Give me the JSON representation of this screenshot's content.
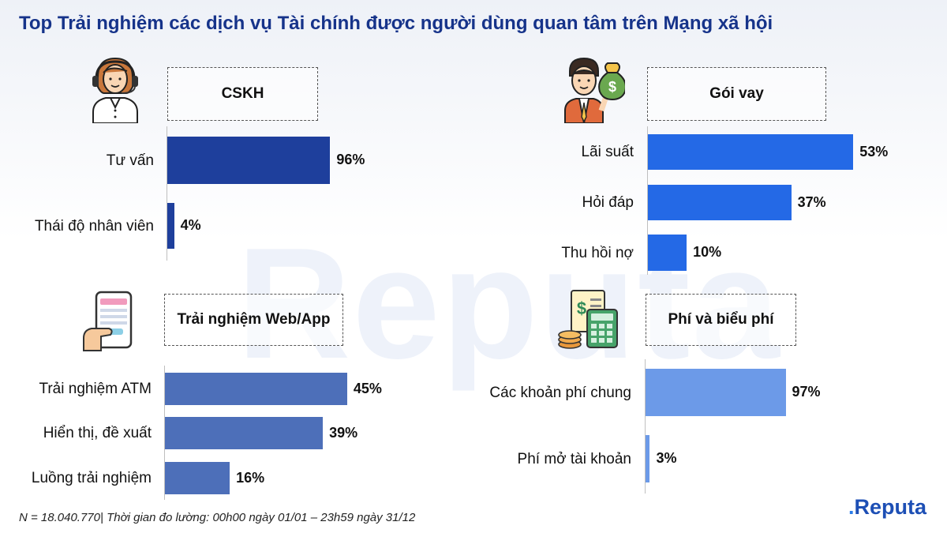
{
  "title": "Top Trải nghiệm các dịch vụ Tài chính được người dùng quan tâm trên Mạng xã hội",
  "watermark": "Reputa",
  "footer": "N = 18.040.770| Thời gian đo lường: 00h00 ngày 01/01 – 23h59 ngày 31/12",
  "logo": {
    "dot": ".",
    "text": "Reputa"
  },
  "colors": {
    "cskh": "#1e3f9c",
    "goivay": "#2469e6",
    "webapp": "#4d6fb9",
    "phi": "#6c9ae8"
  },
  "chart_data": [
    {
      "type": "bar",
      "title": "CSKH",
      "icon": "customer-support-agent-icon",
      "categories": [
        "Tư vấn",
        "Thái độ nhân viên"
      ],
      "values": [
        96,
        4
      ],
      "value_labels": [
        "96%",
        "4%"
      ],
      "color": "#1e3f9c"
    },
    {
      "type": "bar",
      "title": "Gói vay",
      "icon": "money-bag-person-icon",
      "categories": [
        "Lãi suất",
        "Hỏi đáp",
        "Thu hồi nợ"
      ],
      "values": [
        53,
        37,
        10
      ],
      "value_labels": [
        "53%",
        "37%",
        "10%"
      ],
      "color": "#2469e6"
    },
    {
      "type": "bar",
      "title": "Trải nghiệm Web/App",
      "icon": "mobile-phone-hand-icon",
      "categories": [
        "Trải nghiệm ATM",
        "Hiển thị, đề xuất",
        "Luồng trải nghiệm"
      ],
      "values": [
        45,
        39,
        16
      ],
      "value_labels": [
        "45%",
        "39%",
        "16%"
      ],
      "color": "#4d6fb9"
    },
    {
      "type": "bar",
      "title": "Phí và biểu phí",
      "icon": "calculator-coins-icon",
      "categories": [
        "Các khoản phí chung",
        "Phí mở tài khoản"
      ],
      "values": [
        97,
        3
      ],
      "value_labels": [
        "97%",
        "3%"
      ],
      "color": "#6c9ae8"
    }
  ]
}
